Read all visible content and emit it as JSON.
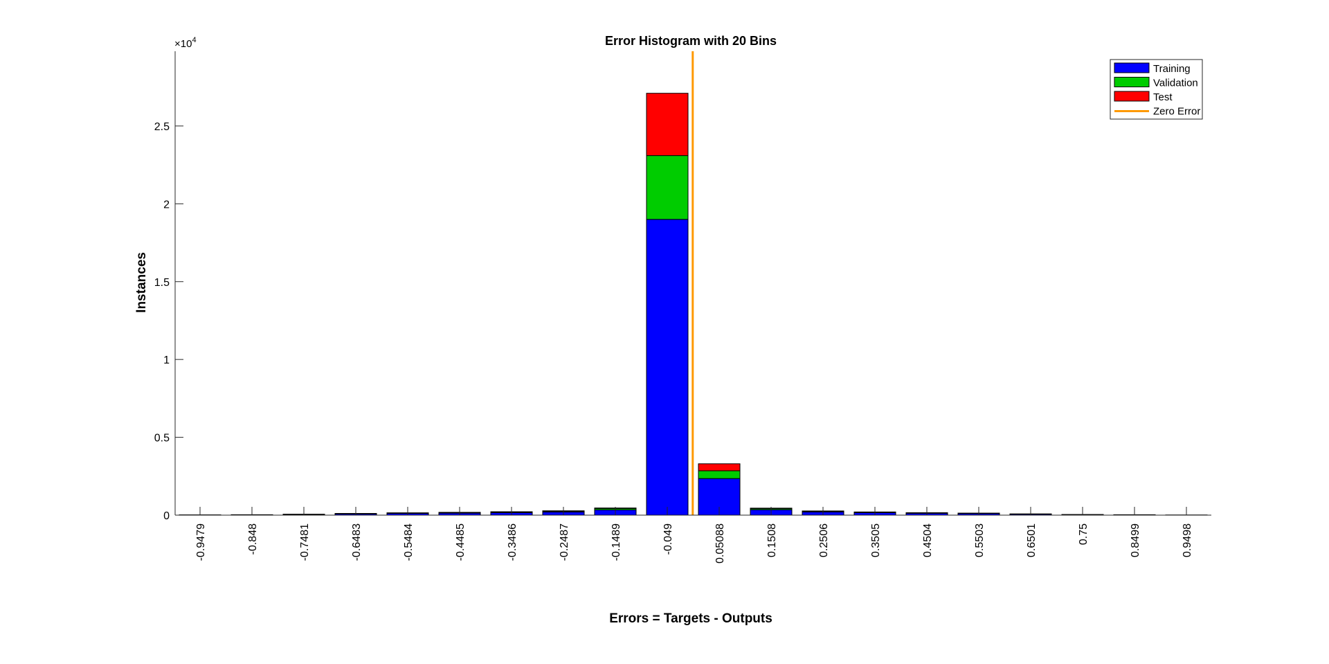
{
  "chart_data": {
    "type": "bar",
    "stacked": true,
    "title": "Error Histogram with 20 Bins",
    "xlabel": "Errors = Targets - Outputs",
    "ylabel": "Instances",
    "y_exponent_label": "×10",
    "y_exponent_power": "4",
    "y_scale": 10000,
    "ylim": [
      0,
      29800
    ],
    "yticks": [
      0,
      5000,
      10000,
      15000,
      20000,
      25000
    ],
    "ytick_labels": [
      "0",
      "0.5",
      "1",
      "1.5",
      "2",
      "2.5"
    ],
    "categories": [
      "-0.9479",
      "-0.848",
      "-0.7481",
      "-0.6483",
      "-0.5484",
      "-0.4485",
      "-0.3486",
      "-0.2487",
      "-0.1489",
      "-0.049",
      "0.05088",
      "0.1508",
      "0.2506",
      "0.3505",
      "0.4504",
      "0.5503",
      "0.6501",
      "0.75",
      "0.8499",
      "0.9498"
    ],
    "series": [
      {
        "name": "Training",
        "color": "#0000ff",
        "values": [
          10,
          20,
          40,
          80,
          110,
          130,
          160,
          200,
          340,
          19000,
          2350,
          350,
          210,
          160,
          120,
          100,
          60,
          30,
          20,
          5
        ]
      },
      {
        "name": "Validation",
        "color": "#00cc00",
        "values": [
          2,
          4,
          10,
          15,
          20,
          25,
          30,
          40,
          90,
          4100,
          500,
          70,
          40,
          30,
          25,
          20,
          12,
          6,
          4,
          1
        ]
      },
      {
        "name": "Test",
        "color": "#ff0000",
        "values": [
          2,
          4,
          10,
          15,
          20,
          25,
          30,
          40,
          30,
          4000,
          450,
          30,
          20,
          15,
          12,
          10,
          8,
          4,
          3,
          1
        ]
      }
    ],
    "reference_line": {
      "name": "Zero Error",
      "color": "#ff9900",
      "x": 0
    },
    "legend": "top-right",
    "legend_entries": [
      "Training",
      "Validation",
      "Test",
      "Zero Error"
    ],
    "grid": false
  }
}
